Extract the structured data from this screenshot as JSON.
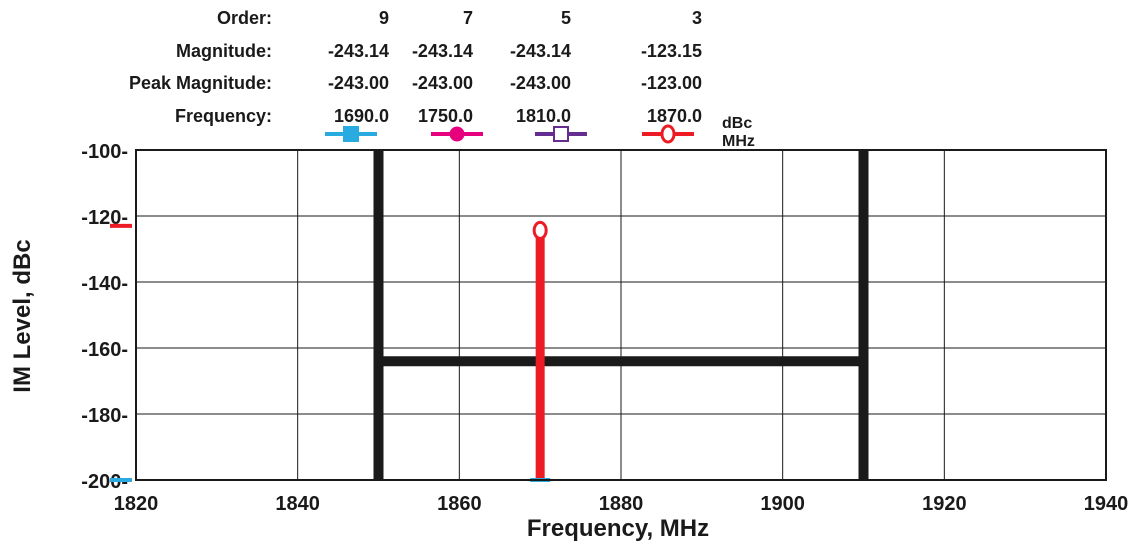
{
  "chart_data": {
    "type": "line",
    "xlabel": "Frequency, MHz",
    "ylabel": "IM Level, dBc",
    "xlim": [
      1820,
      1940
    ],
    "ylim": [
      -200,
      -100
    ],
    "x_ticks": [
      1820,
      1840,
      1860,
      1880,
      1900,
      1920,
      1940
    ],
    "y_ticks": [
      -100,
      -120,
      -140,
      -160,
      -180,
      -200
    ],
    "x_tick_labels": [
      "1820",
      "1840",
      "1860",
      "1880",
      "1900",
      "1920",
      "1940"
    ],
    "y_tick_labels": [
      "-100-",
      "-120-",
      "-140-",
      "-160-",
      "-180-",
      "-200-"
    ],
    "grid": true,
    "table": {
      "row_labels": {
        "order": "Order:",
        "magnitude": "Magnitude:",
        "peak": "Peak Magnitude:",
        "frequency": "Frequency:"
      },
      "units": {
        "level": "dBc",
        "frequency": "MHz"
      },
      "columns": [
        {
          "order": "9",
          "magnitude": "-243.14",
          "peak": "-243.00",
          "frequency": "1690.0",
          "color": "#29abe2",
          "marker": "filled-square"
        },
        {
          "order": "7",
          "magnitude": "-243.14",
          "peak": "-243.00",
          "frequency": "1750.0",
          "color": "#e6007e",
          "marker": "filled-circle"
        },
        {
          "order": "5",
          "magnitude": "-243.14",
          "peak": "-243.00",
          "frequency": "1810.0",
          "color": "#662d91",
          "marker": "open-square"
        },
        {
          "order": "3",
          "magnitude": "-123.15",
          "peak": "-123.00",
          "frequency": "1870.0",
          "color": "#ed1c24",
          "marker": "open-circle"
        }
      ]
    },
    "mask": {
      "color": "#1a1a1a",
      "x_start": 1850,
      "x_end": 1910,
      "level": -164
    },
    "stems": [
      {
        "x": 1870,
        "y": -123.15,
        "color": "#ed1c24",
        "marker": "open-circle"
      }
    ],
    "left_markers": [
      {
        "y": -123,
        "color": "#ed1c24"
      },
      {
        "y": -200,
        "color": "#29abe2"
      }
    ],
    "baseline_markers": [
      {
        "x": 1870,
        "y": -200,
        "color": "#29abe2"
      }
    ]
  }
}
